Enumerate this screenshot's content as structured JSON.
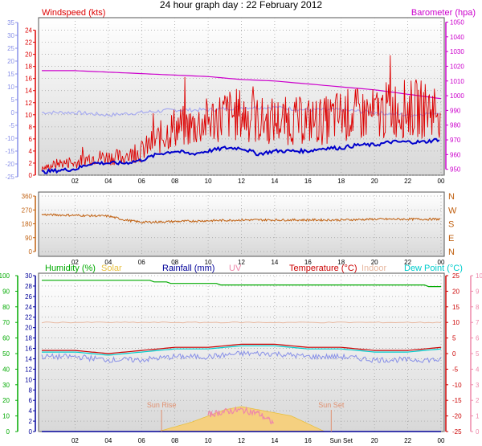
{
  "title": "24 hour graph day : 22 February 2012",
  "x_ticks": [
    "02",
    "04",
    "06",
    "08",
    "10",
    "12",
    "14",
    "16",
    "18",
    "20",
    "22",
    "00"
  ],
  "x_ticks_bottom": [
    "02",
    "04",
    "06",
    "08",
    "10",
    "12",
    "14",
    "16",
    "Sun Set",
    "20",
    "22",
    "00"
  ],
  "colors": {
    "windspeed": "#dd0000",
    "avg_wind": "#0000cc",
    "barometer": "#cc00cc",
    "bar_avg": "#a8acf0",
    "direction": "#c06010",
    "humidity": "#00aa00",
    "solar": "#e8c040",
    "rainfall": "#000099",
    "uv": "#ee88aa",
    "temperature": "#cc0000",
    "indoor": "#e8b8a0",
    "dewpoint": "#00cccc",
    "temp_left_axis": "#8890e8",
    "wind_left_axis": "#8890e8",
    "sun_marker": "#e09070"
  },
  "chart_data": [
    {
      "type": "line",
      "panel": "wind-barometer",
      "legend": {
        "left": "Windspeed (kts)",
        "right": "Barometer (hpa)"
      },
      "axes": {
        "left_outer": {
          "ticks": [
            35,
            30,
            25,
            20,
            15,
            10,
            5,
            0,
            -5,
            -10,
            -15,
            -20,
            -25
          ],
          "ylim": [
            -25,
            35
          ]
        },
        "left_inner": {
          "ticks": [
            24,
            22,
            20,
            18,
            16,
            14,
            12,
            10,
            8,
            6,
            4,
            2,
            0
          ],
          "ylim": [
            0,
            25
          ]
        },
        "right": {
          "ticks": [
            1050,
            1040,
            1030,
            1020,
            1010,
            1000,
            990,
            980,
            970,
            960,
            950
          ],
          "ylim": [
            946,
            1053
          ]
        }
      },
      "series": [
        {
          "name": "Windspeed (kts)",
          "x": [
            0,
            1,
            2,
            3,
            4,
            5,
            6,
            7,
            8,
            9,
            10,
            11,
            12,
            13,
            14,
            15,
            16,
            17,
            18,
            19,
            20,
            21,
            22,
            23,
            24
          ],
          "values": [
            1,
            2,
            2,
            3,
            3,
            3,
            4,
            6,
            8,
            8,
            9,
            10,
            10,
            9,
            9,
            9,
            9,
            9,
            10,
            10,
            10,
            11,
            11,
            11,
            11
          ]
        },
        {
          "name": "Average wind",
          "x": [
            0,
            1,
            2,
            3,
            4,
            5,
            6,
            7,
            8,
            9,
            10,
            11,
            12,
            13,
            14,
            15,
            16,
            17,
            18,
            19,
            20,
            21,
            22,
            23,
            24
          ],
          "values": [
            0.5,
            0.8,
            1,
            2,
            2,
            2,
            2.5,
            3.5,
            4,
            3.5,
            4,
            4.5,
            4.5,
            3.5,
            4,
            4,
            4,
            4.5,
            4.5,
            5,
            5,
            5.5,
            5.5,
            5.5,
            6
          ]
        },
        {
          "name": "Barometer (hpa)",
          "x": [
            0,
            2,
            4,
            6,
            8,
            10,
            12,
            14,
            16,
            18,
            20,
            22,
            24
          ],
          "values": [
            1017,
            1017,
            1016,
            1015,
            1014,
            1013,
            1011,
            1010,
            1008,
            1006,
            1004,
            1001,
            998
          ]
        },
        {
          "name": "Temperature",
          "x": [
            0,
            2,
            4,
            6,
            8,
            10,
            12,
            14,
            16,
            18,
            20,
            22,
            24
          ],
          "values": [
            0,
            0,
            -1,
            0,
            1,
            1,
            2,
            2,
            1,
            1,
            0,
            -1,
            0
          ]
        }
      ]
    },
    {
      "type": "scatter",
      "panel": "wind-direction",
      "axes": {
        "left": {
          "ticks": [
            360,
            270,
            180,
            90,
            0
          ],
          "ylim": [
            0,
            360
          ]
        },
        "right": {
          "ticks": [
            "N",
            "W",
            "S",
            "E",
            "N"
          ]
        }
      },
      "series": [
        {
          "name": "Wind direction",
          "x": [
            0,
            2,
            4,
            5,
            6,
            8,
            10,
            12,
            14,
            16,
            18,
            20,
            22,
            24
          ],
          "values": [
            240,
            235,
            230,
            205,
            190,
            195,
            200,
            205,
            205,
            205,
            205,
            210,
            210,
            210
          ]
        }
      ]
    },
    {
      "type": "line",
      "panel": "temperature-humidity",
      "legend": [
        "Humidity (%)",
        "Solar",
        "Rainfall (mm)",
        "UV",
        "Temperature (°C)",
        "Indoor",
        "Dew Point (°C)"
      ],
      "axes": {
        "humidity": {
          "ticks": [
            100,
            90,
            80,
            70,
            60,
            50,
            40,
            30,
            20,
            10,
            0
          ],
          "ylim": [
            0,
            100
          ]
        },
        "rain": {
          "ticks": [
            30,
            28,
            26,
            24,
            22,
            20,
            18,
            16,
            14,
            12,
            10,
            8,
            6,
            4,
            2,
            0
          ],
          "ylim": [
            0,
            30
          ]
        },
        "temp_right": {
          "ticks": [
            25,
            20,
            15,
            10,
            5,
            0,
            -5,
            -10,
            -15,
            -20,
            -25
          ],
          "ylim": [
            -25,
            25
          ]
        },
        "uv": {
          "ticks": [
            10,
            9,
            8,
            7,
            6,
            5,
            4,
            3,
            2,
            1,
            0
          ],
          "ylim": [
            0,
            10
          ]
        }
      },
      "series": [
        {
          "name": "Humidity (%)",
          "x": [
            0,
            2,
            4,
            6,
            8,
            10,
            11,
            12,
            14,
            16,
            18,
            20,
            22,
            24
          ],
          "values": [
            97,
            97,
            97,
            97,
            95,
            95,
            94,
            94,
            94,
            94,
            94,
            94,
            94,
            93
          ]
        },
        {
          "name": "Indoor",
          "x": [
            0,
            4,
            8,
            12,
            16,
            20,
            24
          ],
          "values": [
            21,
            21,
            21,
            21,
            21,
            21,
            21
          ]
        },
        {
          "name": "Temperature (°C)",
          "x": [
            0,
            2,
            4,
            6,
            8,
            10,
            12,
            14,
            16,
            18,
            20,
            22,
            24
          ],
          "values": [
            1,
            1,
            0,
            1,
            2,
            2,
            3,
            3,
            2,
            2,
            1,
            1,
            2
          ]
        },
        {
          "name": "Dew Point (°C)",
          "x": [
            0,
            2,
            4,
            6,
            8,
            10,
            12,
            14,
            16,
            18,
            20,
            22,
            24
          ],
          "values": [
            0.5,
            0.5,
            -0.5,
            0.5,
            1.5,
            1.5,
            2.5,
            2.5,
            1.5,
            1.5,
            0.5,
            0.5,
            1.5
          ]
        },
        {
          "name": "Temperature low-res",
          "x": [
            0,
            2,
            4,
            6,
            8,
            10,
            12,
            14,
            16,
            18,
            20,
            22,
            24
          ],
          "values": [
            -1,
            -1,
            -2,
            -2,
            -1,
            -1,
            0,
            0,
            -1,
            -1,
            -2,
            -2,
            -2
          ]
        },
        {
          "name": "Solar",
          "x": [
            7,
            8,
            9,
            10,
            11,
            12,
            13,
            14,
            15,
            16,
            17
          ],
          "values": [
            0,
            0.3,
            0.6,
            1,
            1.4,
            1.6,
            1.4,
            1.2,
            1,
            0.5,
            0
          ]
        },
        {
          "name": "UV",
          "x": [
            10,
            11,
            12,
            13,
            14
          ],
          "values": [
            1,
            1.2,
            1.3,
            1.1,
            0.4
          ]
        },
        {
          "name": "Rainfall (mm)",
          "x": [
            0,
            24
          ],
          "values": [
            0,
            0
          ]
        }
      ],
      "annotations": {
        "sun_rise": "Sun Rise",
        "sun_set": "Sun Set",
        "sun_rise_hour": 7.2,
        "sun_set_hour": 17.4
      }
    }
  ]
}
